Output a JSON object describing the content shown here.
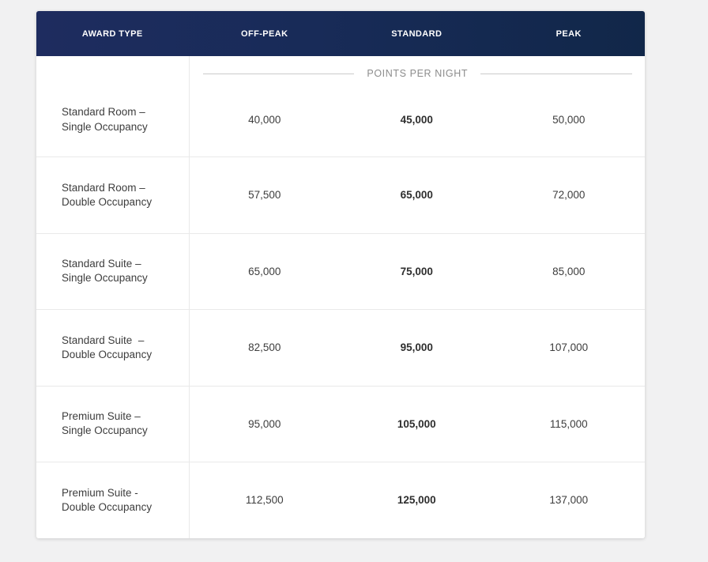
{
  "page": {
    "background_color": "#f1f1f2"
  },
  "table": {
    "colors": {
      "header_background": "#1c2a5a",
      "header_text": "#ffffff",
      "body_background": "#ffffff",
      "body_text": "#3d3d3d",
      "legend_text": "#8c8c8c",
      "divider": "#e9e9e9"
    },
    "header": {
      "columns": [
        "AWARD TYPE",
        "OFF-PEAK",
        "STANDARD",
        "PEAK"
      ]
    },
    "legend": "POINTS PER NIGHT",
    "rows": [
      {
        "award_type": "Standard Room – Single Occupancy",
        "off_peak": "40,000",
        "standard": "45,000",
        "peak": "50,000"
      },
      {
        "award_type": "Standard Room – Double Occupancy",
        "off_peak": "57,500",
        "standard": "65,000",
        "peak": "72,000"
      },
      {
        "award_type": "Standard Suite – Single Occupancy",
        "off_peak": "65,000",
        "standard": "75,000",
        "peak": "85,000"
      },
      {
        "award_type": "Standard Suite  – Double Occupancy",
        "off_peak": "82,500",
        "standard": "95,000",
        "peak": "107,000"
      },
      {
        "award_type": "Premium Suite – Single Occupancy",
        "off_peak": "95,000",
        "standard": "105,000",
        "peak": "115,000"
      },
      {
        "award_type": "Premium Suite - Double Occupancy",
        "off_peak": "112,500",
        "standard": "125,000",
        "peak": "137,000"
      }
    ]
  },
  "chart_data": {
    "type": "table",
    "title": "POINTS PER NIGHT",
    "columns": [
      "AWARD TYPE",
      "OFF-PEAK",
      "STANDARD",
      "PEAK"
    ],
    "rows": [
      [
        "Standard Room – Single Occupancy",
        40000,
        45000,
        50000
      ],
      [
        "Standard Room – Double Occupancy",
        57500,
        65000,
        72000
      ],
      [
        "Standard Suite – Single Occupancy",
        65000,
        75000,
        85000
      ],
      [
        "Standard Suite – Double Occupancy",
        82500,
        95000,
        107000
      ],
      [
        "Premium Suite – Single Occupancy",
        95000,
        105000,
        115000
      ],
      [
        "Premium Suite - Double Occupancy",
        112500,
        125000,
        137000
      ]
    ],
    "notes": "STANDARD column values rendered in bold"
  }
}
